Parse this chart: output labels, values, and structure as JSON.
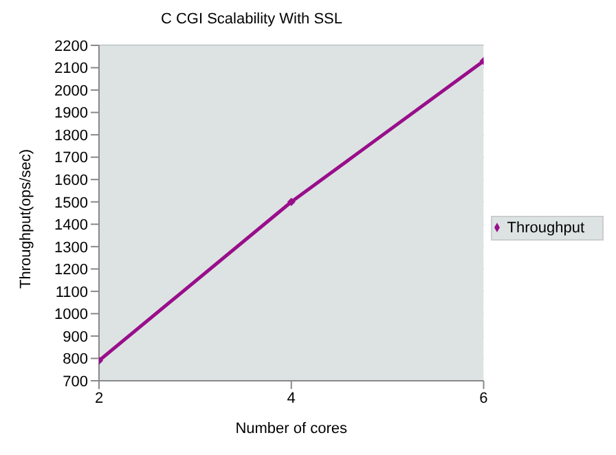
{
  "chart_data": {
    "type": "line",
    "title": "C CGI Scalability With SSL",
    "xlabel": "Number of cores",
    "ylabel": "Throughput(ops/sec)",
    "x": [
      2,
      4,
      6
    ],
    "series": [
      {
        "name": "Throughput",
        "color": "#990e8a",
        "values": [
          790,
          1500,
          2130
        ]
      }
    ],
    "xlim": [
      2,
      6
    ],
    "xticks": [
      2,
      4,
      6
    ],
    "ylim": [
      700,
      2200
    ],
    "yticks": [
      700,
      800,
      900,
      1000,
      1100,
      1200,
      1300,
      1400,
      1500,
      1600,
      1700,
      1800,
      1900,
      2000,
      2100,
      2200
    ],
    "grid": "y",
    "legend": "right",
    "marker": "diamond",
    "line_style": "solid"
  }
}
